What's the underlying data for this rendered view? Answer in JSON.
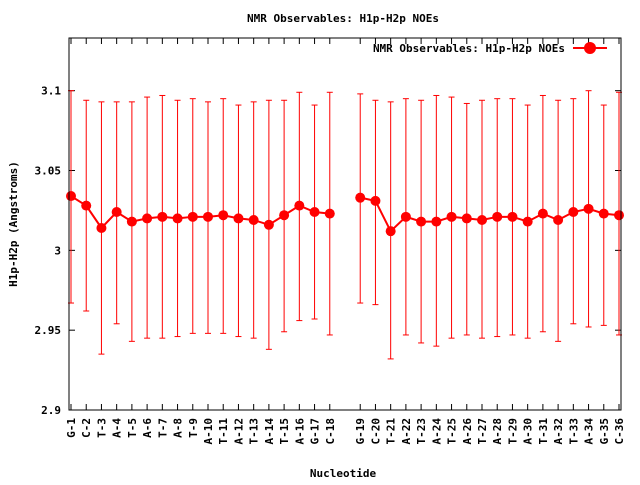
{
  "chart_data": {
    "type": "line",
    "title": "NMR Observables: H1p-H2p NOEs",
    "xlabel": "Nucleotide",
    "ylabel": "H1p-H2p (Angstroms)",
    "ylim": [
      2.9,
      3.133
    ],
    "yticks": [
      {
        "value": 2.9,
        "label": "2.9"
      },
      {
        "value": 2.95,
        "label": "2.95"
      },
      {
        "value": 3.0,
        "label": "3"
      },
      {
        "value": 3.05,
        "label": "3.05"
      },
      {
        "value": 3.1,
        "label": "3.1"
      }
    ],
    "grid": false,
    "legend": {
      "position": "top-right",
      "label": "NMR Observables: H1p-H2p NOEs"
    },
    "color": "#ff0000",
    "series": [
      {
        "name": "NMR Observables: H1p-H2p NOEs",
        "categories": [
          "G-1",
          "C-2",
          "T-3",
          "A-4",
          "T-5",
          "A-6",
          "T-7",
          "A-8",
          "T-9",
          "A-10",
          "T-11",
          "A-12",
          "T-13",
          "A-14",
          "T-15",
          "A-16",
          "G-17",
          "C-18"
        ],
        "values": [
          3.034,
          3.028,
          3.014,
          3.024,
          3.018,
          3.02,
          3.021,
          3.02,
          3.021,
          3.021,
          3.022,
          3.02,
          3.019,
          3.016,
          3.022,
          3.028,
          3.024,
          3.023
        ],
        "err_low": [
          2.967,
          2.962,
          2.935,
          2.954,
          2.943,
          2.945,
          2.945,
          2.946,
          2.948,
          2.948,
          2.948,
          2.946,
          2.945,
          2.938,
          2.949,
          2.956,
          2.957,
          2.947
        ],
        "err_high": [
          3.1,
          3.094,
          3.093,
          3.093,
          3.093,
          3.096,
          3.097,
          3.094,
          3.095,
          3.093,
          3.095,
          3.091,
          3.093,
          3.094,
          3.094,
          3.099,
          3.091,
          3.099
        ]
      },
      {
        "name": "NMR Observables: H1p-H2p NOEs",
        "categories": [
          "G-19",
          "C-20",
          "T-21",
          "A-22",
          "T-23",
          "A-24",
          "T-25",
          "A-26",
          "T-27",
          "A-28",
          "T-29",
          "A-30",
          "T-31",
          "A-32",
          "T-33",
          "A-34",
          "G-35",
          "C-36"
        ],
        "values": [
          3.033,
          3.031,
          3.012,
          3.021,
          3.018,
          3.018,
          3.021,
          3.02,
          3.019,
          3.021,
          3.021,
          3.018,
          3.023,
          3.019,
          3.024,
          3.026,
          3.023,
          3.022
        ],
        "err_low": [
          2.967,
          2.966,
          2.932,
          2.947,
          2.942,
          2.94,
          2.945,
          2.947,
          2.945,
          2.946,
          2.947,
          2.945,
          2.949,
          2.943,
          2.954,
          2.952,
          2.953,
          2.947
        ],
        "err_high": [
          3.098,
          3.094,
          3.093,
          3.095,
          3.094,
          3.097,
          3.096,
          3.092,
          3.094,
          3.095,
          3.095,
          3.091,
          3.097,
          3.094,
          3.095,
          3.1,
          3.091,
          3.099
        ]
      }
    ]
  }
}
